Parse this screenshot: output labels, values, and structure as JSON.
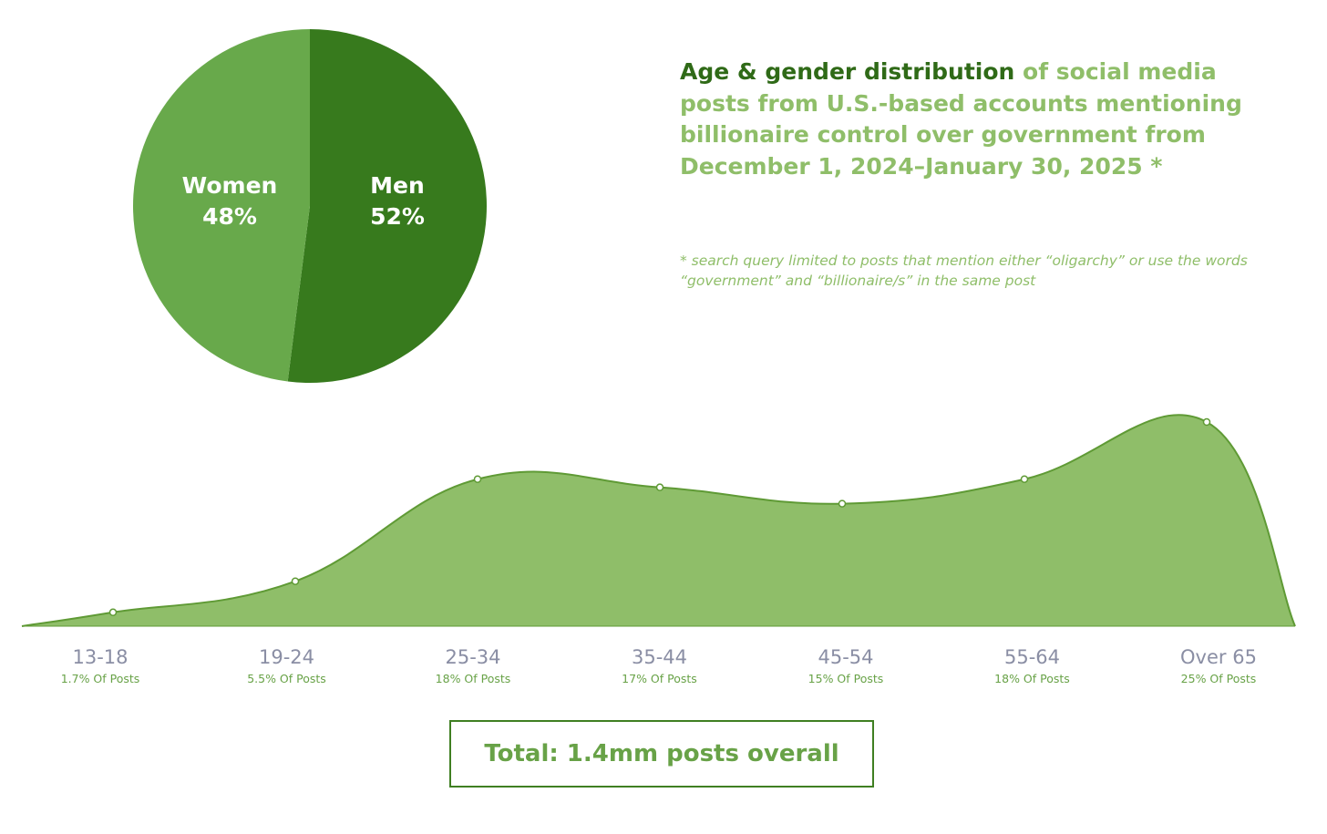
{
  "title": {
    "highlight": "Age & gender distribution",
    "rest": " of social media posts from U.S.-based accounts mentioning billionaire control over government from December 1, 2024–January 30, 2025 *"
  },
  "footnote": "* search query limited to posts that mention either “oligarchy” or use the words  “government” and “billionaire/s” in the same post",
  "total": "Total: 1.4mm posts overall",
  "colors": {
    "men": "#377a1d",
    "women": "#68a94b",
    "area_fill": "#8fbe69",
    "area_line": "#5f9a35"
  },
  "chart_data": [
    {
      "type": "pie",
      "slices": [
        {
          "name": "Men",
          "label": "52%",
          "value": 52
        },
        {
          "name": "Women",
          "label": "48%",
          "value": 48
        }
      ]
    },
    {
      "type": "area",
      "categories": [
        "13-18",
        "19-24",
        "25-34",
        "35-44",
        "45-54",
        "55-64",
        "Over 65"
      ],
      "values": [
        1.7,
        5.5,
        18,
        17,
        15,
        18,
        25
      ],
      "value_labels": [
        "1.7% Of Posts",
        "5.5% Of Posts",
        "18% Of Posts",
        "17% Of Posts",
        "15% Of Posts",
        "18% Of Posts",
        "25% Of Posts"
      ],
      "grid": false
    }
  ]
}
